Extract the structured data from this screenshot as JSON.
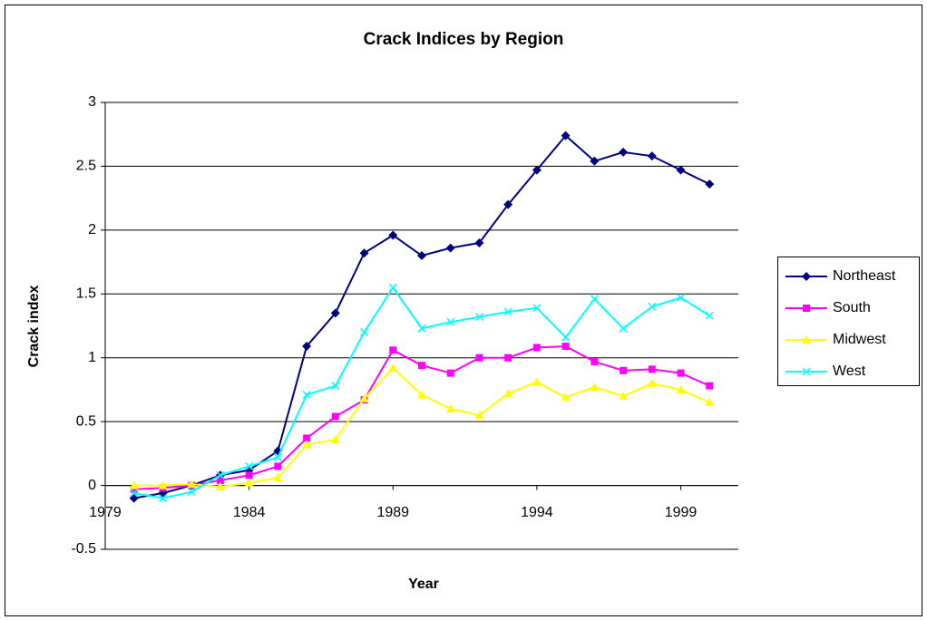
{
  "chart_data": {
    "type": "line",
    "title": "Crack Indices by Region",
    "x_label": "Year",
    "y_label": "Crack index",
    "x": [
      1980,
      1981,
      1982,
      1983,
      1984,
      1985,
      1986,
      1987,
      1988,
      1989,
      1990,
      1991,
      1992,
      1993,
      1994,
      1995,
      1996,
      1997,
      1998,
      1999,
      2000
    ],
    "series": [
      {
        "name": "Northeast",
        "color": "#000080",
        "marker": "diamond",
        "values": [
          -0.1,
          -0.06,
          0,
          0.08,
          0.12,
          0.27,
          1.09,
          1.35,
          1.82,
          1.96,
          1.8,
          1.86,
          1.9,
          2.2,
          2.47,
          2.74,
          2.54,
          2.61,
          2.58,
          2.47,
          2.36
        ]
      },
      {
        "name": "South",
        "color": "#ff00ff",
        "marker": "square",
        "values": [
          -0.03,
          -0.02,
          0,
          0.04,
          0.08,
          0.15,
          0.37,
          0.54,
          0.67,
          1.06,
          0.94,
          0.88,
          1.0,
          1.0,
          1.08,
          1.09,
          0.97,
          0.9,
          0.91,
          0.88,
          0.78
        ]
      },
      {
        "name": "Midwest",
        "color": "#ffff00",
        "marker": "triangle",
        "values": [
          0,
          0,
          0.01,
          -0.01,
          0.02,
          0.06,
          0.32,
          0.36,
          0.68,
          0.92,
          0.71,
          0.6,
          0.55,
          0.72,
          0.81,
          0.69,
          0.77,
          0.7,
          0.8,
          0.75,
          0.65
        ]
      },
      {
        "name": "West",
        "color": "#00ffff",
        "marker": "x",
        "values": [
          -0.06,
          -0.1,
          -0.05,
          0.08,
          0.15,
          0.22,
          0.71,
          0.78,
          1.2,
          1.55,
          1.23,
          1.28,
          1.32,
          1.36,
          1.39,
          1.16,
          1.46,
          1.23,
          1.4,
          1.47,
          1.33
        ]
      }
    ],
    "xlim": [
      1979,
      2001
    ],
    "xticks": [
      1979,
      1984,
      1989,
      1994,
      1999
    ],
    "ylim": [
      -0.5,
      3
    ],
    "yticks": [
      -0.5,
      0,
      0.5,
      1,
      1.5,
      2,
      2.5,
      3
    ],
    "grid": true,
    "legend": "right"
  }
}
